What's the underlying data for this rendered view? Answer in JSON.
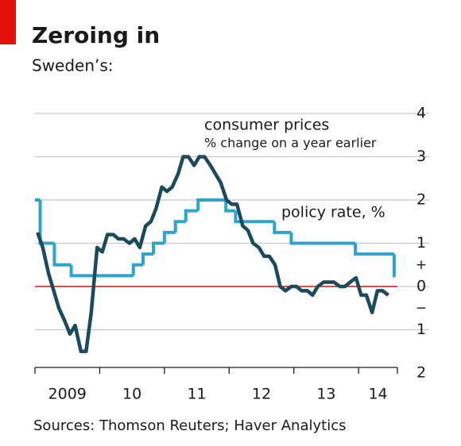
{
  "chart_data": {
    "type": "line",
    "title": "Zeroing in",
    "subtitle": "Sweden’s:",
    "source": "Sources: Thomson Reuters; Haver Analytics",
    "annotations": {
      "cpi": "consumer prices",
      "cpi_sub": "% change on a year earlier",
      "policy": "policy rate, %"
    },
    "sign_labels": {
      "positive": "+",
      "negative": "−"
    },
    "xlim": [
      2009,
      2014.6
    ],
    "xticks": [
      {
        "value": 2009,
        "label": "2009"
      },
      {
        "value": 2010,
        "label": "10"
      },
      {
        "value": 2011,
        "label": "11"
      },
      {
        "value": 2012,
        "label": "12"
      },
      {
        "value": 2013,
        "label": "13"
      },
      {
        "value": 2014,
        "label": "14"
      }
    ],
    "ylim": [
      -2,
      4
    ],
    "yticks": [
      {
        "value": -2,
        "label": "2"
      },
      {
        "value": -1,
        "label": "1"
      },
      0,
      1,
      2,
      3,
      4
    ],
    "zero_line_color": "#e3120b",
    "grid": true,
    "series": [
      {
        "name": "consumer prices",
        "color": "#1b4a5c",
        "style": "line",
        "x": [
          2009.04,
          2009.12,
          2009.21,
          2009.29,
          2009.37,
          2009.46,
          2009.54,
          2009.62,
          2009.71,
          2009.79,
          2009.87,
          2009.96,
          2010.04,
          2010.12,
          2010.21,
          2010.29,
          2010.37,
          2010.46,
          2010.54,
          2010.62,
          2010.71,
          2010.79,
          2010.87,
          2010.96,
          2011.04,
          2011.12,
          2011.21,
          2011.29,
          2011.37,
          2011.46,
          2011.54,
          2011.62,
          2011.71,
          2011.79,
          2011.87,
          2011.96,
          2012.04,
          2012.12,
          2012.21,
          2012.29,
          2012.37,
          2012.46,
          2012.54,
          2012.62,
          2012.71,
          2012.79,
          2012.87,
          2012.96,
          2013.04,
          2013.12,
          2013.21,
          2013.29,
          2013.37,
          2013.46,
          2013.54,
          2013.62,
          2013.71,
          2013.79,
          2013.87,
          2013.96,
          2014.04,
          2014.12,
          2014.21,
          2014.29,
          2014.37,
          2014.46
        ],
        "values": [
          1.25,
          0.9,
          0.3,
          -0.1,
          -0.5,
          -0.8,
          -1.1,
          -0.9,
          -1.5,
          -1.5,
          -0.6,
          0.9,
          0.8,
          1.2,
          1.2,
          1.1,
          1.1,
          1.0,
          1.1,
          0.9,
          1.4,
          1.5,
          1.8,
          2.3,
          2.2,
          2.3,
          2.6,
          3.0,
          3.0,
          2.8,
          3.0,
          3.0,
          2.8,
          2.6,
          2.4,
          2.0,
          1.9,
          1.9,
          1.4,
          1.3,
          1.0,
          0.9,
          0.7,
          0.7,
          0.5,
          0.0,
          -0.1,
          0.0,
          0.0,
          -0.1,
          -0.1,
          -0.2,
          0.0,
          0.1,
          0.1,
          0.1,
          0.0,
          0.0,
          0.1,
          0.2,
          -0.2,
          -0.2,
          -0.6,
          -0.1,
          -0.1,
          -0.2
        ]
      },
      {
        "name": "policy rate, %",
        "color": "#2ea3cf",
        "style": "step",
        "x": [
          2009.0,
          2009.08,
          2009.3,
          2009.56,
          2010.52,
          2010.67,
          2010.83,
          2011.0,
          2011.17,
          2011.33,
          2011.52,
          2011.95,
          2012.1,
          2012.7,
          2012.96,
          2013.95,
          2014.55,
          2014.57
        ],
        "values": [
          2.0,
          1.0,
          0.5,
          0.25,
          0.5,
          0.75,
          1.0,
          1.25,
          1.5,
          1.75,
          2.0,
          1.75,
          1.5,
          1.25,
          1.0,
          0.75,
          0.25,
          0.25
        ]
      }
    ]
  }
}
